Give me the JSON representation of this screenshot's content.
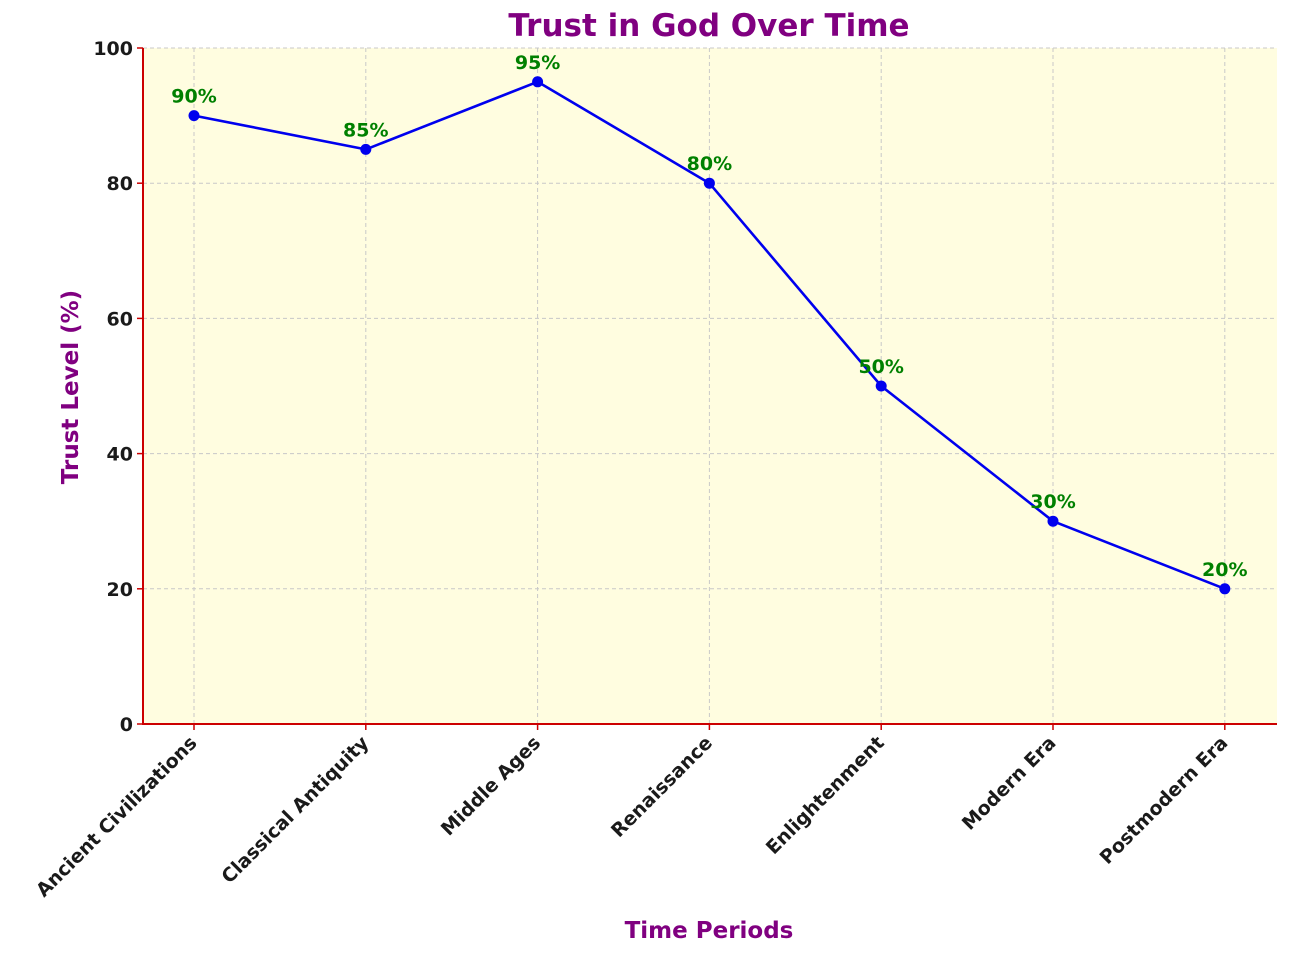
{
  "chart_data": {
    "type": "line",
    "title": "Trust in God Over Time",
    "xlabel": "Time Periods",
    "ylabel": "Trust Level (%)",
    "categories": [
      "Ancient Civilizations",
      "Classical Antiquity",
      "Middle Ages",
      "Renaissance",
      "Enlightenment",
      "Modern Era",
      "Postmodern Era"
    ],
    "series": [
      {
        "name": "Trust Level",
        "values": [
          90,
          85,
          95,
          80,
          50,
          30,
          20
        ],
        "data_labels": [
          "90%",
          "85%",
          "95%",
          "80%",
          "50%",
          "30%",
          "20%"
        ]
      }
    ],
    "ylim": [
      0,
      100
    ],
    "yticks": [
      0,
      20,
      40,
      60,
      80,
      100
    ],
    "grid": true,
    "colors": {
      "title": "#800080",
      "axis_label": "#800080",
      "line": "#0000ee",
      "marker": "#0000ee",
      "data_label": "#008000",
      "plot_background": "#fffde0",
      "axis_spine": "#cc0000",
      "grid": "#c8c8c8"
    }
  }
}
